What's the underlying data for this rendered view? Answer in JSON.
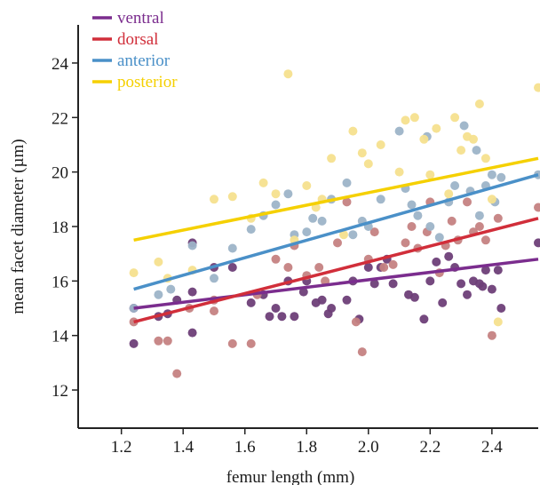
{
  "chart_data": {
    "type": "scatter",
    "xlabel": "femur length (mm)",
    "ylabel": "mean facet diameter (µm)",
    "xlim": [
      1.06,
      2.55
    ],
    "ylim": [
      10.6,
      25.4
    ],
    "xticks": [
      "1.2",
      "1.4",
      "1.6",
      "1.8",
      "2.0",
      "2.2",
      "2.4"
    ],
    "yticks": [
      "12",
      "14",
      "16",
      "18",
      "20",
      "22",
      "24"
    ],
    "grid": false,
    "legend_position": "top-left",
    "series": [
      {
        "name": "ventral",
        "color": "#7b2d8e",
        "point_color": "#6e3f78",
        "line": [
          [
            1.24,
            15.0
          ],
          [
            2.55,
            16.8
          ]
        ],
        "points": [
          [
            1.24,
            13.7
          ],
          [
            1.24,
            15.0
          ],
          [
            1.32,
            14.7
          ],
          [
            1.35,
            14.8
          ],
          [
            1.38,
            15.3
          ],
          [
            1.43,
            14.1
          ],
          [
            1.43,
            15.6
          ],
          [
            1.43,
            17.4
          ],
          [
            1.5,
            16.5
          ],
          [
            1.56,
            16.5
          ],
          [
            1.62,
            15.2
          ],
          [
            1.66,
            15.5
          ],
          [
            1.68,
            14.7
          ],
          [
            1.7,
            15.0
          ],
          [
            1.72,
            14.7
          ],
          [
            1.74,
            16.0
          ],
          [
            1.76,
            14.7
          ],
          [
            1.79,
            15.6
          ],
          [
            1.8,
            16.0
          ],
          [
            1.83,
            15.2
          ],
          [
            1.85,
            15.3
          ],
          [
            1.87,
            14.8
          ],
          [
            1.88,
            15.0
          ],
          [
            1.93,
            15.3
          ],
          [
            1.95,
            16.0
          ],
          [
            1.97,
            14.6
          ],
          [
            2.0,
            16.5
          ],
          [
            2.02,
            15.9
          ],
          [
            2.04,
            16.5
          ],
          [
            2.06,
            16.8
          ],
          [
            2.08,
            15.9
          ],
          [
            2.13,
            15.5
          ],
          [
            2.15,
            15.4
          ],
          [
            2.18,
            14.6
          ],
          [
            2.2,
            16.0
          ],
          [
            2.22,
            16.7
          ],
          [
            2.24,
            15.2
          ],
          [
            2.26,
            16.9
          ],
          [
            2.28,
            16.5
          ],
          [
            2.3,
            15.9
          ],
          [
            2.32,
            15.5
          ],
          [
            2.34,
            16.0
          ],
          [
            2.36,
            15.9
          ],
          [
            2.37,
            15.8
          ],
          [
            2.38,
            16.4
          ],
          [
            2.4,
            15.7
          ],
          [
            2.42,
            16.4
          ],
          [
            2.43,
            15.0
          ],
          [
            2.55,
            17.4
          ]
        ]
      },
      {
        "name": "dorsal",
        "color": "#d12e3a",
        "point_color": "#c58282",
        "line": [
          [
            1.24,
            14.5
          ],
          [
            2.55,
            18.3
          ]
        ],
        "points": [
          [
            1.24,
            14.5
          ],
          [
            1.32,
            13.8
          ],
          [
            1.35,
            13.8
          ],
          [
            1.38,
            12.6
          ],
          [
            1.42,
            15.0
          ],
          [
            1.5,
            15.3
          ],
          [
            1.5,
            14.9
          ],
          [
            1.56,
            13.7
          ],
          [
            1.62,
            13.7
          ],
          [
            1.64,
            15.5
          ],
          [
            1.7,
            16.8
          ],
          [
            1.74,
            16.5
          ],
          [
            1.76,
            17.3
          ],
          [
            1.8,
            16.2
          ],
          [
            1.84,
            16.5
          ],
          [
            1.86,
            16.0
          ],
          [
            1.9,
            17.4
          ],
          [
            1.93,
            18.9
          ],
          [
            1.96,
            14.5
          ],
          [
            1.98,
            13.4
          ],
          [
            2.0,
            16.8
          ],
          [
            2.02,
            17.8
          ],
          [
            2.05,
            16.5
          ],
          [
            2.08,
            16.6
          ],
          [
            2.12,
            17.4
          ],
          [
            2.14,
            18.0
          ],
          [
            2.16,
            17.2
          ],
          [
            2.19,
            17.8
          ],
          [
            2.2,
            18.9
          ],
          [
            2.23,
            16.3
          ],
          [
            2.25,
            17.3
          ],
          [
            2.27,
            18.2
          ],
          [
            2.29,
            17.5
          ],
          [
            2.32,
            18.9
          ],
          [
            2.34,
            17.8
          ],
          [
            2.36,
            18.0
          ],
          [
            2.38,
            17.5
          ],
          [
            2.4,
            14.0
          ],
          [
            2.42,
            18.3
          ],
          [
            2.55,
            18.7
          ]
        ]
      },
      {
        "name": "anterior",
        "color": "#4a90c8",
        "point_color": "#9db4c8",
        "line": [
          [
            1.24,
            15.7
          ],
          [
            2.55,
            19.9
          ]
        ],
        "points": [
          [
            1.24,
            15.0
          ],
          [
            1.32,
            15.5
          ],
          [
            1.36,
            15.7
          ],
          [
            1.43,
            17.3
          ],
          [
            1.5,
            16.1
          ],
          [
            1.56,
            17.2
          ],
          [
            1.62,
            17.9
          ],
          [
            1.66,
            18.4
          ],
          [
            1.7,
            18.8
          ],
          [
            1.74,
            19.2
          ],
          [
            1.76,
            17.7
          ],
          [
            1.8,
            17.8
          ],
          [
            1.82,
            18.3
          ],
          [
            1.85,
            18.2
          ],
          [
            1.88,
            19.0
          ],
          [
            1.93,
            19.6
          ],
          [
            1.95,
            17.7
          ],
          [
            1.98,
            18.2
          ],
          [
            2.0,
            18.0
          ],
          [
            2.04,
            19.0
          ],
          [
            2.1,
            21.5
          ],
          [
            2.12,
            19.4
          ],
          [
            2.14,
            18.8
          ],
          [
            2.16,
            18.4
          ],
          [
            2.19,
            21.3
          ],
          [
            2.2,
            18.0
          ],
          [
            2.23,
            17.6
          ],
          [
            2.26,
            18.9
          ],
          [
            2.28,
            19.5
          ],
          [
            2.31,
            21.7
          ],
          [
            2.33,
            19.3
          ],
          [
            2.35,
            20.8
          ],
          [
            2.36,
            18.4
          ],
          [
            2.38,
            19.5
          ],
          [
            2.4,
            19.9
          ],
          [
            2.41,
            18.9
          ],
          [
            2.43,
            19.8
          ],
          [
            2.55,
            19.9
          ]
        ]
      },
      {
        "name": "posterior",
        "color": "#f5d000",
        "point_color": "#f5e08e",
        "line": [
          [
            1.24,
            17.5
          ],
          [
            2.55,
            20.5
          ]
        ],
        "points": [
          [
            1.24,
            16.3
          ],
          [
            1.32,
            16.7
          ],
          [
            1.35,
            16.1
          ],
          [
            1.43,
            16.4
          ],
          [
            1.5,
            19.0
          ],
          [
            1.56,
            19.1
          ],
          [
            1.62,
            18.3
          ],
          [
            1.66,
            19.6
          ],
          [
            1.7,
            19.2
          ],
          [
            1.74,
            23.6
          ],
          [
            1.76,
            17.5
          ],
          [
            1.8,
            19.5
          ],
          [
            1.83,
            18.7
          ],
          [
            1.85,
            19.0
          ],
          [
            1.88,
            20.5
          ],
          [
            1.92,
            17.7
          ],
          [
            1.95,
            21.5
          ],
          [
            1.98,
            20.7
          ],
          [
            2.0,
            20.3
          ],
          [
            2.04,
            21.0
          ],
          [
            2.1,
            20.0
          ],
          [
            2.12,
            21.9
          ],
          [
            2.15,
            22.0
          ],
          [
            2.18,
            21.2
          ],
          [
            2.2,
            19.9
          ],
          [
            2.22,
            21.6
          ],
          [
            2.26,
            19.2
          ],
          [
            2.28,
            22.0
          ],
          [
            2.3,
            20.8
          ],
          [
            2.32,
            21.3
          ],
          [
            2.34,
            21.2
          ],
          [
            2.36,
            22.5
          ],
          [
            2.38,
            20.5
          ],
          [
            2.4,
            19.0
          ],
          [
            2.42,
            14.5
          ],
          [
            2.55,
            23.1
          ]
        ]
      }
    ]
  }
}
